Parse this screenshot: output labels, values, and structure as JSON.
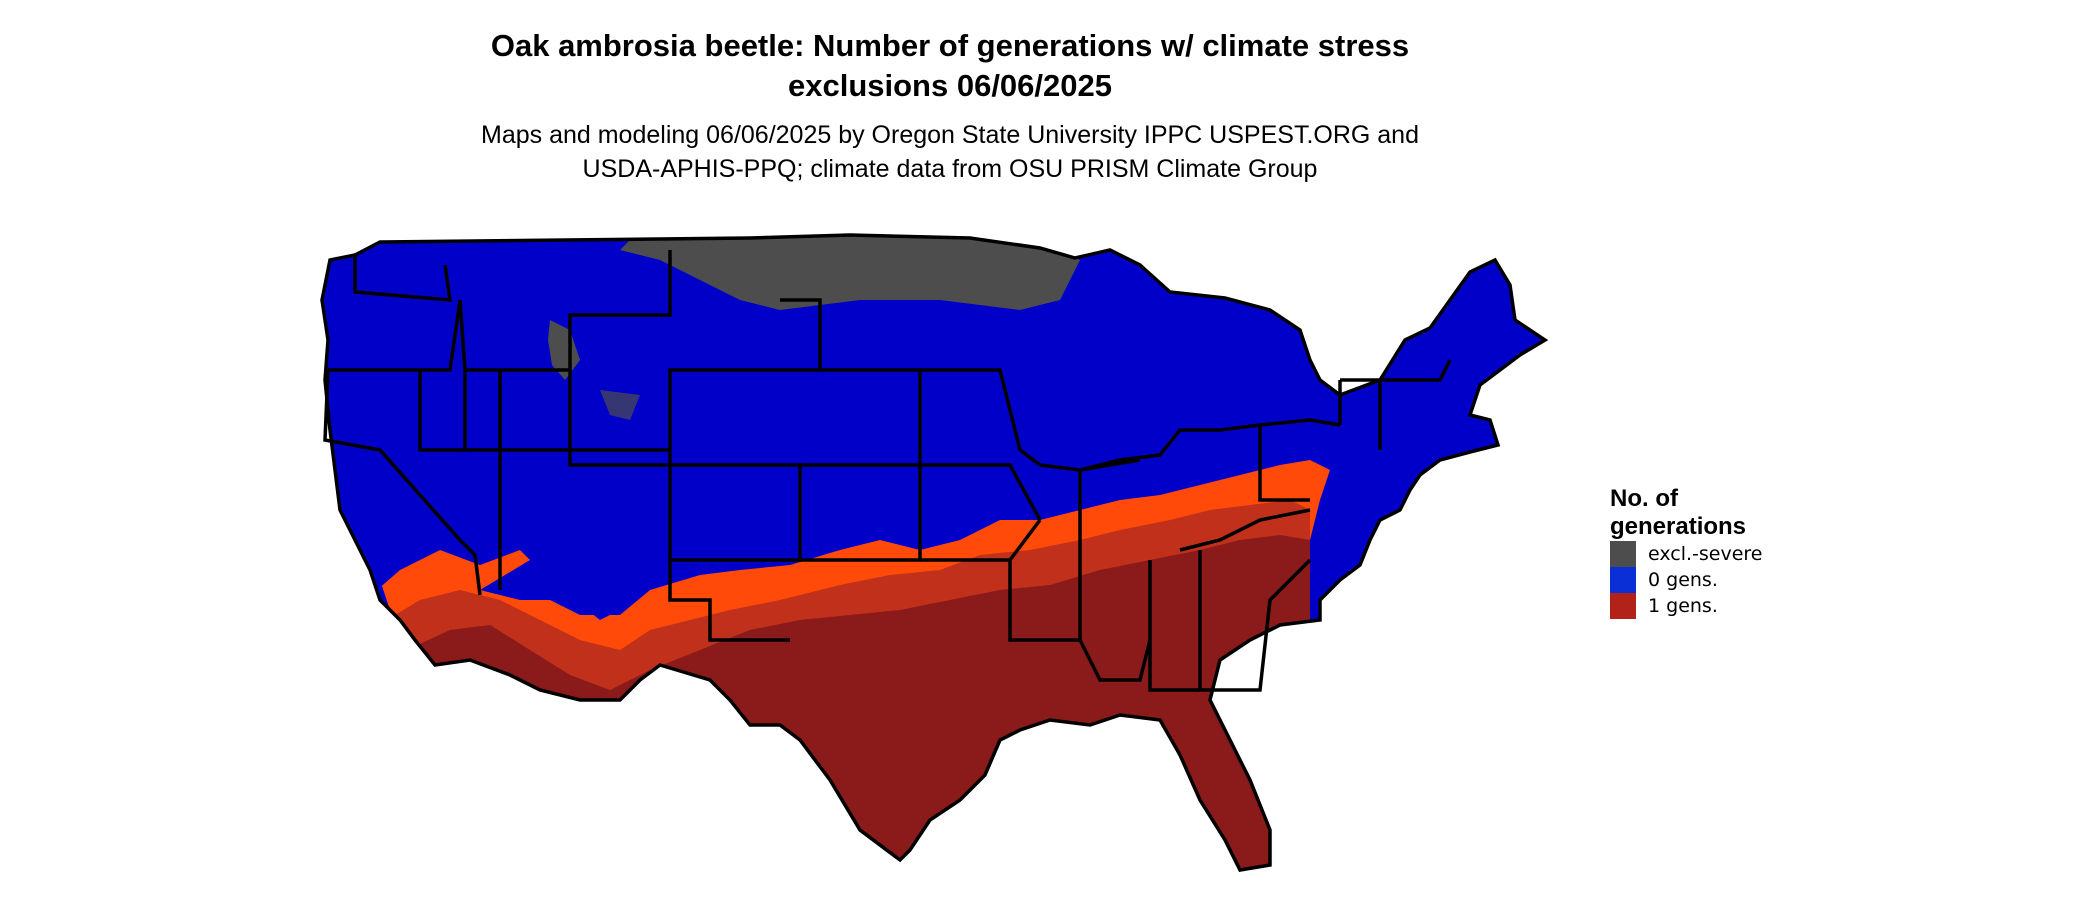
{
  "title": "Oak ambrosia beetle: Number of generations w/ climate stress\nexclusions 06/06/2025",
  "subtitle": "Maps and modeling 06/06/2025 by Oregon State University IPPC USPEST.ORG and\nUSDA-APHIS-PPQ; climate data from OSU PRISM Climate Group",
  "legend": {
    "title": "No. of\ngenerations",
    "items": [
      {
        "label": "excl.-severe",
        "color": "#4d4d4d"
      },
      {
        "label": "0 gens.",
        "color": "#0a2fd6"
      },
      {
        "label": "1 gens.",
        "color": "#b22218"
      }
    ]
  },
  "map_colors": {
    "land_zero_gens": "#0000c8",
    "excluded": "#4d4d4d",
    "one_gen_dark": "#8b1a1a",
    "one_gen_mid": "#c0301a",
    "one_gen_light": "#ff4a0a",
    "borders": "#000000"
  }
}
